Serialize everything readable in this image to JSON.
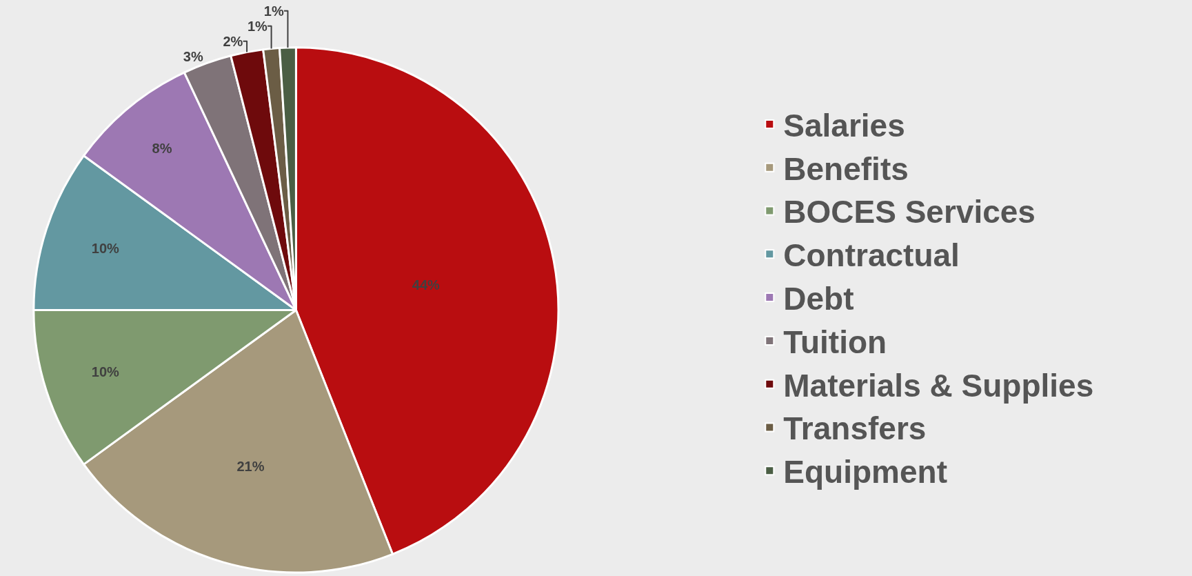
{
  "chart_data": {
    "type": "pie",
    "categories": [
      "Salaries",
      "Benefits",
      "BOCES Services",
      "Contractual",
      "Debt",
      "Tuition",
      "Materials & Supplies",
      "Transfers",
      "Equipment"
    ],
    "values": [
      44,
      21,
      10,
      10,
      8,
      3,
      2,
      1,
      1
    ],
    "value_labels": [
      "44%",
      "21%",
      "10%",
      "10%",
      "8%",
      "3%",
      "2%",
      "1%",
      "1%"
    ],
    "colors": [
      "#b90d10",
      "#a6997c",
      "#7f9a6f",
      "#6398a1",
      "#9d78b3",
      "#7f7378",
      "#6e0a0c",
      "#6b5d45",
      "#4a5e44"
    ],
    "legend": "right"
  }
}
